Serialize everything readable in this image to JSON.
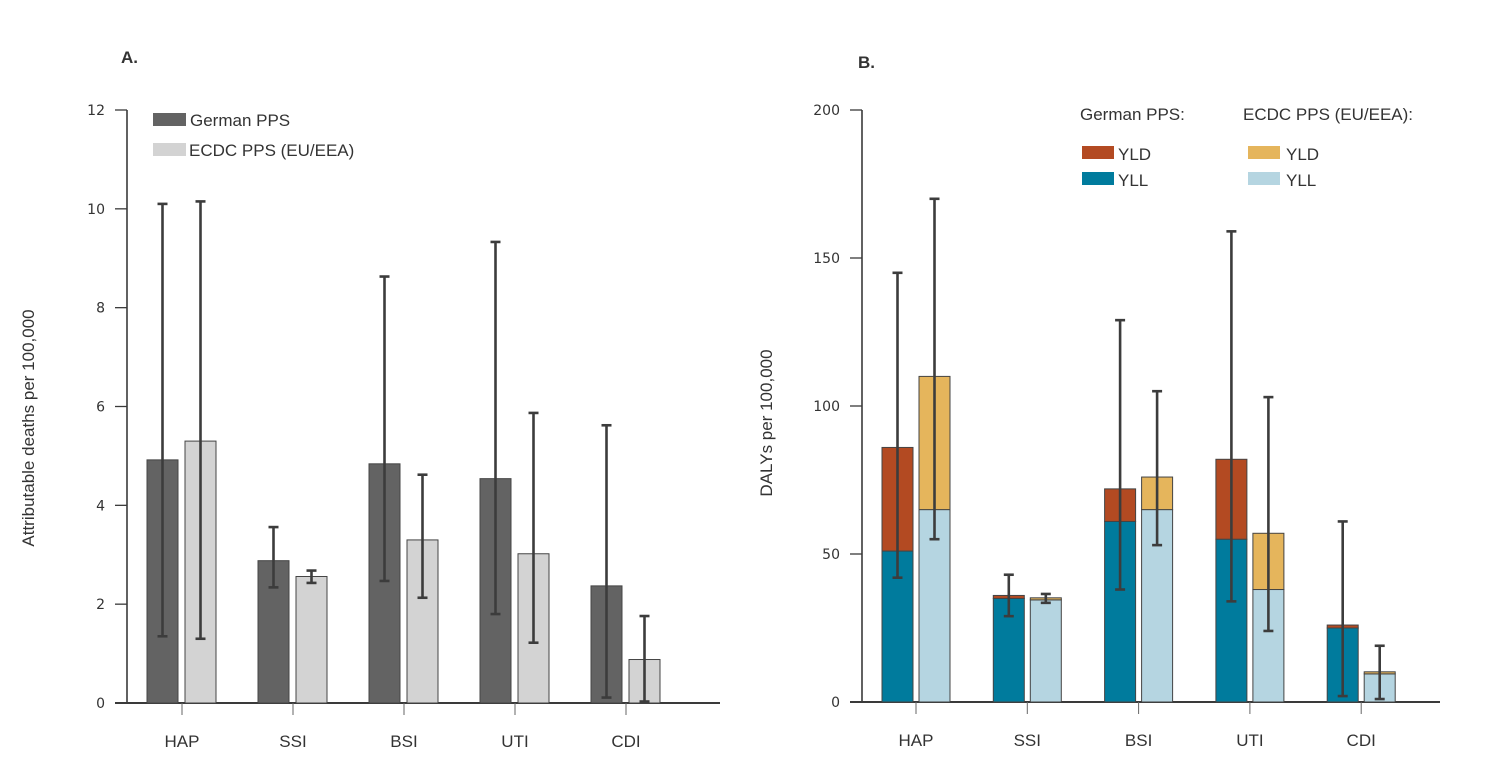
{
  "chart_data": [
    {
      "panel": "A.",
      "type": "bar",
      "title": "",
      "xlabel": "",
      "ylabel": "Attributable deaths per 100,000",
      "ylim": [
        0,
        12
      ],
      "yticks": [
        0,
        2,
        4,
        6,
        8,
        10,
        12
      ],
      "grid": false,
      "legend_position": "top-left",
      "categories": [
        "HAP",
        "SSI",
        "BSI",
        "UTI",
        "CDI"
      ],
      "series": [
        {
          "name": "German PPS",
          "color": "#636363",
          "values": [
            4.92,
            2.88,
            4.84,
            4.54,
            2.37
          ],
          "error_low": [
            1.35,
            2.34,
            2.47,
            1.8,
            0.11
          ],
          "error_high": [
            10.1,
            3.56,
            8.63,
            9.33,
            5.62
          ]
        },
        {
          "name": "ECDC PPS (EU/EEA)",
          "color": "#d3d3d3",
          "values": [
            5.3,
            2.56,
            3.3,
            3.02,
            0.88
          ],
          "error_low": [
            1.3,
            2.43,
            2.13,
            1.22,
            0.03
          ],
          "error_high": [
            10.15,
            2.68,
            4.62,
            5.87,
            1.76
          ]
        }
      ]
    },
    {
      "panel": "B.",
      "type": "bar",
      "stacked": true,
      "title": "",
      "xlabel": "",
      "ylabel": "DALYs per 100,000",
      "ylim": [
        0,
        200
      ],
      "yticks": [
        0,
        50,
        100,
        150,
        200
      ],
      "grid": false,
      "legend_position": "top-right",
      "legend_groups": [
        {
          "title": "German PPS:",
          "entries": [
            {
              "label": "YLD",
              "color": "#b34a22"
            },
            {
              "label": "YLL",
              "color": "#007b9d"
            }
          ]
        },
        {
          "title": "ECDC PPS (EU/EEA):",
          "entries": [
            {
              "label": "YLD",
              "color": "#e5b55c"
            },
            {
              "label": "YLL",
              "color": "#b5d5e1"
            }
          ]
        }
      ],
      "categories": [
        "HAP",
        "SSI",
        "BSI",
        "UTI",
        "CDI"
      ],
      "series": [
        {
          "name": "German PPS",
          "yll": [
            51,
            35,
            61,
            55,
            25
          ],
          "yld": [
            35,
            1,
            11,
            27,
            1
          ],
          "yll_color": "#007b9d",
          "yld_color": "#b34a22",
          "error_low": [
            42,
            29,
            38,
            34,
            2
          ],
          "error_high": [
            145,
            43,
            129,
            159,
            61
          ]
        },
        {
          "name": "ECDC PPS (EU/EEA)",
          "yll": [
            65,
            34.5,
            65,
            38,
            9.5
          ],
          "yld": [
            45,
            0.7,
            11,
            19,
            0.7
          ],
          "yll_color": "#b5d5e1",
          "yld_color": "#e5b55c",
          "error_low": [
            55,
            33.5,
            53,
            24,
            1
          ],
          "error_high": [
            170,
            36.5,
            105,
            103,
            19
          ]
        }
      ]
    }
  ]
}
